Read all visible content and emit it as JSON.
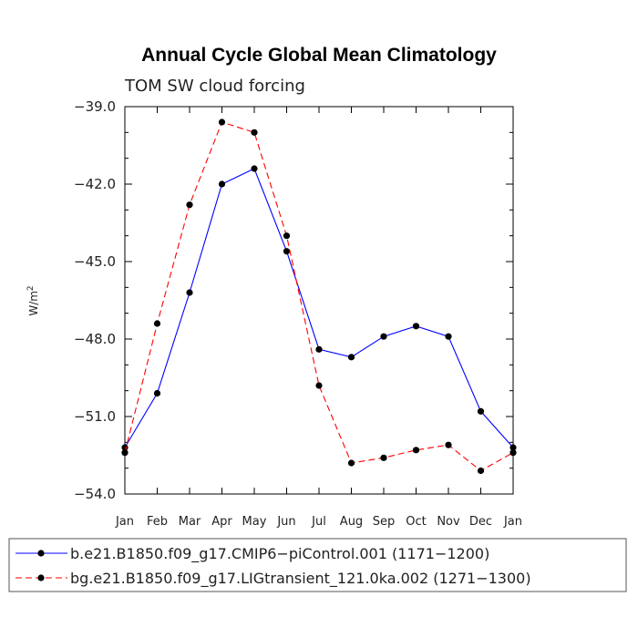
{
  "chart_data": {
    "type": "line",
    "title": "Annual Cycle Global Mean Climatology",
    "subtitle": "TOM SW cloud forcing",
    "ylabel": "W/m",
    "ylabel_sup": "2",
    "ylim": [
      -54.0,
      -39.0
    ],
    "yticks": [
      -39.0,
      -42.0,
      -45.0,
      -48.0,
      -51.0,
      -54.0
    ],
    "ytick_labels": [
      "−39.0",
      "−42.0",
      "−45.0",
      "−48.0",
      "−51.0",
      "−54.0"
    ],
    "categories": [
      "Jan",
      "Feb",
      "Mar",
      "Apr",
      "May",
      "Jun",
      "Jul",
      "Aug",
      "Sep",
      "Oct",
      "Nov",
      "Dec",
      "Jan"
    ],
    "series": [
      {
        "name": "b.e21.B1850.f09_g17.CMIP6−piControl.001 (1171−1200)",
        "color": "#0000ff",
        "dash": "solid",
        "values": [
          -52.2,
          -50.1,
          -46.2,
          -42.0,
          -41.4,
          -44.6,
          -48.4,
          -48.7,
          -47.9,
          -47.5,
          -47.9,
          -50.8,
          -52.2
        ]
      },
      {
        "name": "bg.e21.B1850.f09_g17.LIGtransient_121.0ka.002 (1271−1300)",
        "color": "#ff0000",
        "dash": "dashed",
        "values": [
          -52.4,
          -47.4,
          -42.8,
          -39.6,
          -40.0,
          -44.0,
          -49.8,
          -52.8,
          -52.6,
          -52.3,
          -52.1,
          -53.1,
          -52.4
        ]
      }
    ]
  }
}
